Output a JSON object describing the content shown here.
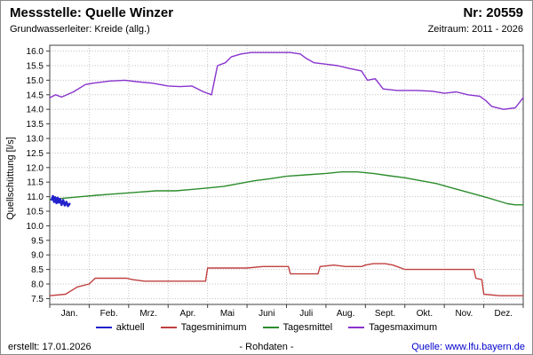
{
  "header": {
    "title": "Messstelle: Quelle Winzer",
    "number": "Nr: 20559",
    "aquifer": "Grundwasserleiter: Kreide (allg.)",
    "period": "Zeitraum: 2011 - 2026"
  },
  "footer": {
    "created": "erstellt: 17.01.2026",
    "mode": "- Rohdaten -",
    "source": "Quelle: www.lfu.bayern.de"
  },
  "chart_data": {
    "type": "line",
    "title": "",
    "xlabel": "",
    "ylabel": "Quellschüttung [l/s]",
    "x_unit": "month (0 = 1. Jan, 12 = 31. Dez)",
    "grid": true,
    "legend_position": "bottom",
    "categories": [
      "Jan.",
      "Feb.",
      "Mrz.",
      "Apr.",
      "Mai",
      "Juni",
      "Juli",
      "Aug.",
      "Sept.",
      "Okt.",
      "Nov.",
      "Dez."
    ],
    "yaxis": {
      "min": 7.5,
      "max": 16.0,
      "step": 0.5,
      "pad": 0.2
    },
    "ylim": [
      7.5,
      16.0
    ],
    "legend": [
      "aktuell",
      "Tagesminimum",
      "Tagesmittel",
      "Tagesmaximum"
    ],
    "series": [
      {
        "name": "Tagesminimum",
        "color": "#c04040",
        "width": 1.4,
        "points": [
          [
            0,
            7.6
          ],
          [
            0.4,
            7.65
          ],
          [
            0.7,
            7.9
          ],
          [
            1.0,
            8.0
          ],
          [
            1.15,
            8.2
          ],
          [
            1.6,
            8.2
          ],
          [
            1.95,
            8.2
          ],
          [
            2.1,
            8.15
          ],
          [
            2.4,
            8.1
          ],
          [
            3.0,
            8.1
          ],
          [
            3.6,
            8.1
          ],
          [
            3.95,
            8.1
          ],
          [
            4.0,
            8.55
          ],
          [
            4.5,
            8.55
          ],
          [
            5.0,
            8.55
          ],
          [
            5.4,
            8.6
          ],
          [
            6.05,
            8.6
          ],
          [
            6.1,
            8.35
          ],
          [
            6.8,
            8.35
          ],
          [
            6.85,
            8.6
          ],
          [
            7.2,
            8.65
          ],
          [
            7.5,
            8.6
          ],
          [
            7.9,
            8.6
          ],
          [
            8.0,
            8.65
          ],
          [
            8.2,
            8.7
          ],
          [
            8.5,
            8.7
          ],
          [
            8.7,
            8.65
          ],
          [
            9.0,
            8.5
          ],
          [
            9.6,
            8.5
          ],
          [
            10.3,
            8.5
          ],
          [
            10.75,
            8.5
          ],
          [
            10.8,
            8.2
          ],
          [
            10.95,
            8.15
          ],
          [
            11.0,
            7.65
          ],
          [
            11.4,
            7.6
          ],
          [
            12,
            7.6
          ]
        ]
      },
      {
        "name": "Tagesmittel",
        "color": "#2c8c2c",
        "width": 1.4,
        "points": [
          [
            0,
            10.9
          ],
          [
            0.4,
            10.95
          ],
          [
            0.8,
            11.0
          ],
          [
            1.2,
            11.05
          ],
          [
            1.7,
            11.1
          ],
          [
            2.2,
            11.15
          ],
          [
            2.7,
            11.2
          ],
          [
            3.2,
            11.2
          ],
          [
            3.6,
            11.25
          ],
          [
            4.0,
            11.3
          ],
          [
            4.4,
            11.35
          ],
          [
            4.8,
            11.45
          ],
          [
            5.2,
            11.55
          ],
          [
            5.6,
            11.62
          ],
          [
            6.0,
            11.7
          ],
          [
            6.5,
            11.75
          ],
          [
            7.0,
            11.8
          ],
          [
            7.4,
            11.85
          ],
          [
            7.8,
            11.85
          ],
          [
            8.2,
            11.8
          ],
          [
            8.6,
            11.72
          ],
          [
            9.0,
            11.65
          ],
          [
            9.4,
            11.55
          ],
          [
            9.8,
            11.45
          ],
          [
            10.2,
            11.3
          ],
          [
            10.6,
            11.15
          ],
          [
            11.0,
            11.0
          ],
          [
            11.3,
            10.88
          ],
          [
            11.6,
            10.76
          ],
          [
            11.8,
            10.72
          ],
          [
            12,
            10.72
          ]
        ]
      },
      {
        "name": "Tagesmaximum",
        "color": "#8833cc",
        "width": 1.4,
        "points": [
          [
            0,
            14.4
          ],
          [
            0.15,
            14.5
          ],
          [
            0.3,
            14.42
          ],
          [
            0.6,
            14.6
          ],
          [
            0.9,
            14.85
          ],
          [
            1.1,
            14.9
          ],
          [
            1.5,
            14.97
          ],
          [
            1.9,
            15.0
          ],
          [
            2.2,
            14.95
          ],
          [
            2.6,
            14.9
          ],
          [
            3.0,
            14.8
          ],
          [
            3.3,
            14.78
          ],
          [
            3.6,
            14.8
          ],
          [
            3.9,
            14.6
          ],
          [
            4.1,
            14.5
          ],
          [
            4.25,
            15.5
          ],
          [
            4.45,
            15.6
          ],
          [
            4.6,
            15.8
          ],
          [
            4.85,
            15.9
          ],
          [
            5.1,
            15.95
          ],
          [
            5.6,
            15.95
          ],
          [
            6.1,
            15.95
          ],
          [
            6.35,
            15.9
          ],
          [
            6.5,
            15.75
          ],
          [
            6.7,
            15.6
          ],
          [
            7.0,
            15.55
          ],
          [
            7.3,
            15.5
          ],
          [
            7.6,
            15.4
          ],
          [
            7.9,
            15.32
          ],
          [
            8.05,
            15.0
          ],
          [
            8.25,
            15.05
          ],
          [
            8.45,
            14.7
          ],
          [
            8.8,
            14.65
          ],
          [
            9.3,
            14.65
          ],
          [
            9.7,
            14.62
          ],
          [
            10.0,
            14.55
          ],
          [
            10.3,
            14.6
          ],
          [
            10.6,
            14.5
          ],
          [
            10.9,
            14.45
          ],
          [
            11.05,
            14.3
          ],
          [
            11.2,
            14.1
          ],
          [
            11.5,
            14.0
          ],
          [
            11.8,
            14.05
          ],
          [
            12,
            14.4
          ]
        ]
      },
      {
        "name": "aktuell",
        "color": "#2222cc",
        "width": 2.6,
        "points": [
          [
            0.05,
            10.9
          ],
          [
            0.08,
            11.02
          ],
          [
            0.11,
            10.82
          ],
          [
            0.14,
            10.98
          ],
          [
            0.17,
            10.78
          ],
          [
            0.2,
            10.96
          ],
          [
            0.23,
            10.8
          ],
          [
            0.26,
            10.92
          ],
          [
            0.3,
            10.72
          ],
          [
            0.34,
            10.88
          ],
          [
            0.38,
            10.7
          ],
          [
            0.42,
            10.82
          ],
          [
            0.46,
            10.68
          ],
          [
            0.5,
            10.75
          ]
        ]
      }
    ]
  }
}
